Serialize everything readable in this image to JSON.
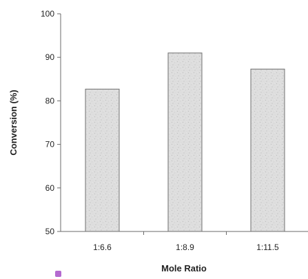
{
  "chart_data": {
    "type": "bar",
    "title": "",
    "xlabel": "Mole Ratio",
    "ylabel": "Conversion (%)",
    "categories": [
      "1:6.6",
      "1:8.9",
      "1:11.5"
    ],
    "values": [
      82.7,
      91.0,
      87.3
    ],
    "ylim": [
      50,
      100
    ],
    "yticks": [
      50,
      60,
      70,
      80,
      90,
      100
    ],
    "grid": false,
    "legend": "none",
    "bar_fill": "#dcdcdc",
    "bar_texture": "speckled"
  }
}
